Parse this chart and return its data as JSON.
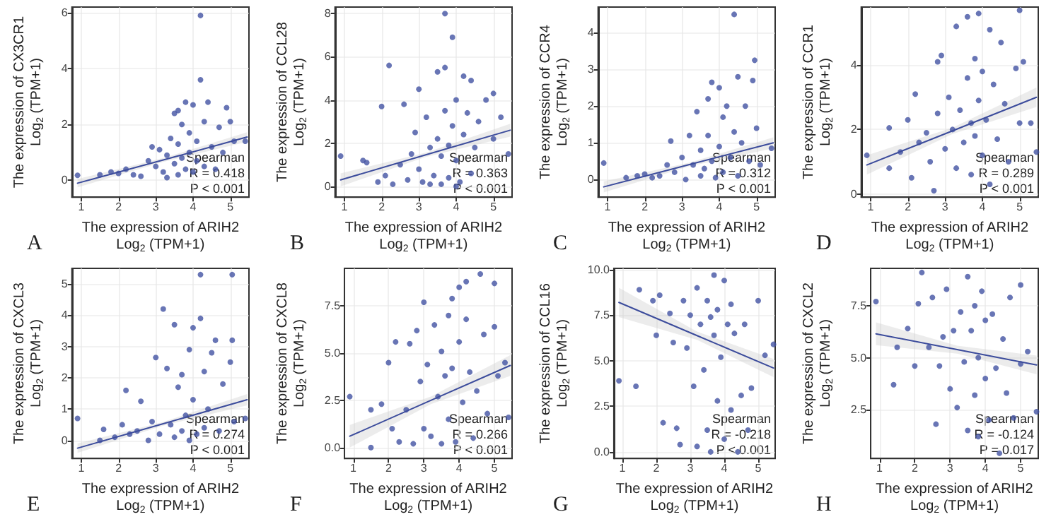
{
  "chart_data": [
    {
      "type": "scatter",
      "title": "A",
      "xlabel": "The expression of ARIH2\nLog$_{2}$ (TPM+1)",
      "ylabel": "The expression of CX3CR1\nLog$_{2}$ (TPM+1)",
      "xlim": [
        0.75,
        5.5
      ],
      "xticks": [
        1,
        2,
        3,
        4,
        5
      ],
      "ylim": [
        -0.6,
        6.2
      ],
      "yticks": [
        0,
        2,
        4,
        6
      ],
      "grid": true,
      "annotations": [
        "Spearman",
        "R = 0.418",
        "P < 0.001"
      ],
      "series": [
        {
          "marker": "circle",
          "color": "#4252a3",
          "x": [
            0.9,
            1.5,
            1.8,
            2.0,
            2.2,
            2.4,
            2.6,
            2.8,
            2.9,
            3.0,
            3.1,
            3.2,
            3.3,
            3.4,
            3.5,
            3.5,
            3.6,
            3.6,
            3.7,
            3.7,
            3.8,
            3.8,
            3.9,
            3.9,
            4.0,
            4.0,
            4.1,
            4.1,
            4.2,
            4.2,
            4.3,
            4.3,
            4.4,
            4.5,
            4.6,
            4.7,
            4.8,
            4.9,
            5.0,
            5.1,
            5.4,
            3.3,
            3.6
          ],
          "values": [
            0.18,
            0.2,
            0.3,
            0.25,
            0.4,
            0.2,
            0.15,
            0.7,
            1.2,
            0.5,
            1.1,
            0.3,
            0.9,
            1.5,
            2.4,
            0.6,
            1.3,
            0.2,
            2.0,
            0.8,
            2.8,
            0.4,
            1.7,
            1.0,
            2.7,
            0.3,
            1.4,
            0.7,
            5.9,
            3.6,
            2.1,
            0.5,
            2.8,
            1.2,
            0.4,
            1.9,
            1.0,
            2.6,
            2.1,
            1.4,
            1.4,
            0.1,
            2.5
          ]
        },
        {
          "type": "line",
          "color": "#3c4c9c",
          "x": [
            0.9,
            3.2,
            5.45
          ],
          "values": [
            -0.1,
            0.73,
            1.55
          ],
          "lower": [
            -0.25,
            0.66,
            1.38
          ],
          "upper": [
            0.05,
            0.8,
            1.72
          ]
        }
      ]
    },
    {
      "type": "scatter",
      "title": "B",
      "xlabel": "The expression of ARIH2\nLog$_{2}$ (TPM+1)",
      "ylabel": "The expression of CCL28\nLog$_{2}$ (TPM+1)",
      "xlim": [
        0.75,
        5.5
      ],
      "xticks": [
        1,
        2,
        3,
        4,
        5
      ],
      "ylim": [
        -0.5,
        8.3
      ],
      "yticks": [
        0,
        2,
        4,
        6,
        8
      ],
      "grid": true,
      "annotations": [
        "Spearman",
        "R = 0.363",
        "P < 0.001"
      ],
      "series": [
        {
          "marker": "circle",
          "color": "#4252a3",
          "x": [
            0.9,
            1.5,
            1.6,
            1.9,
            2.0,
            2.1,
            2.2,
            2.3,
            2.5,
            2.6,
            2.7,
            2.8,
            2.9,
            3.0,
            3.0,
            3.1,
            3.2,
            3.3,
            3.4,
            3.5,
            3.5,
            3.6,
            3.6,
            3.7,
            3.7,
            3.7,
            3.8,
            3.8,
            3.9,
            3.9,
            4.0,
            4.0,
            4.1,
            4.2,
            4.2,
            4.3,
            4.4,
            4.4,
            4.5,
            4.6,
            4.8,
            5.0,
            5.0,
            5.2,
            5.4,
            3.3,
            4.0
          ],
          "values": [
            1.4,
            1.2,
            1.1,
            0.2,
            3.7,
            0.5,
            5.6,
            0.1,
            1.0,
            3.8,
            0.3,
            1.5,
            2.5,
            4.5,
            0.8,
            0.2,
            3.2,
            1.8,
            0.5,
            5.3,
            2.2,
            1.4,
            0.1,
            8.0,
            5.5,
            3.5,
            1.9,
            0.4,
            6.9,
            2.8,
            4.0,
            1.2,
            0.2,
            5.1,
            2.4,
            3.4,
            4.9,
            0.6,
            1.8,
            3.0,
            4.0,
            4.3,
            2.2,
            3.2,
            1.5,
            0.1,
            0.0
          ]
        },
        {
          "type": "line",
          "color": "#3c4c9c",
          "x": [
            0.9,
            3.2,
            5.45
          ],
          "values": [
            0.3,
            1.47,
            2.6
          ],
          "lower": [
            0.0,
            1.37,
            2.3
          ],
          "upper": [
            0.6,
            1.57,
            2.9
          ]
        }
      ]
    },
    {
      "type": "scatter",
      "title": "C",
      "xlabel": "The expression of ARIH2\nLog$_{2}$ (TPM+1)",
      "ylabel": "The expression of CCR4\nLog$_{2}$ (TPM+1)",
      "xlim": [
        0.75,
        5.5
      ],
      "xticks": [
        1,
        2,
        3,
        4,
        5
      ],
      "ylim": [
        -0.48,
        4.7
      ],
      "yticks": [
        0,
        1,
        2,
        3,
        4
      ],
      "grid": true,
      "annotations": [
        "Spearman",
        "R = 0.312",
        "P < 0.001"
      ],
      "series": [
        {
          "marker": "circle",
          "color": "#4252a3",
          "x": [
            0.9,
            1.5,
            1.8,
            2.0,
            2.2,
            2.4,
            2.6,
            2.7,
            2.8,
            3.0,
            3.1,
            3.2,
            3.3,
            3.4,
            3.5,
            3.5,
            3.6,
            3.7,
            3.7,
            3.8,
            3.8,
            3.9,
            4.0,
            4.0,
            4.1,
            4.1,
            4.2,
            4.3,
            4.4,
            4.4,
            4.5,
            4.5,
            4.6,
            4.7,
            4.8,
            4.9,
            4.95,
            5.0,
            5.1,
            5.4
          ],
          "values": [
            0.45,
            0.05,
            0.1,
            0.15,
            0.05,
            0.1,
            0.4,
            1.05,
            0.2,
            0.6,
            0.0,
            1.2,
            0.4,
            1.85,
            0.8,
            0.1,
            0.3,
            2.2,
            1.2,
            2.65,
            0.5,
            0.05,
            2.5,
            0.9,
            1.7,
            0.2,
            2.0,
            0.6,
            4.5,
            1.3,
            2.8,
            0.1,
            1.0,
            2.0,
            0.5,
            2.7,
            3.25,
            1.4,
            0.4,
            0.85
          ]
        },
        {
          "type": "line",
          "color": "#3c4c9c",
          "x": [
            0.9,
            3.2,
            5.45
          ],
          "values": [
            -0.2,
            0.41,
            1.0
          ],
          "lower": [
            -0.35,
            0.36,
            0.85
          ],
          "upper": [
            -0.05,
            0.46,
            1.15
          ]
        }
      ]
    },
    {
      "type": "scatter",
      "title": "D",
      "xlabel": "The expression of ARIH2\nLog$_{2}$ (TPM+1)",
      "ylabel": "The expression of CCR1\nLog$_{2}$ (TPM+1)",
      "xlim": [
        0.75,
        5.5
      ],
      "xticks": [
        1,
        2,
        3,
        4,
        5
      ],
      "ylim": [
        -0.1,
        5.8
      ],
      "yticks": [
        0,
        2,
        4
      ],
      "grid": true,
      "annotations": [
        "Spearman",
        "R = 0.289",
        "P < 0.001"
      ],
      "series": [
        {
          "marker": "circle",
          "color": "#4252a3",
          "x": [
            0.9,
            1.5,
            1.5,
            1.8,
            2.0,
            2.1,
            2.2,
            2.3,
            2.5,
            2.6,
            2.7,
            2.8,
            2.8,
            2.9,
            3.0,
            3.1,
            3.2,
            3.3,
            3.3,
            3.4,
            3.5,
            3.6,
            3.6,
            3.7,
            3.7,
            3.8,
            3.8,
            3.9,
            3.9,
            4.0,
            4.0,
            4.1,
            4.2,
            4.2,
            4.3,
            4.4,
            4.5,
            4.6,
            4.7,
            4.9,
            5.0,
            5.0,
            5.1,
            5.3,
            5.45
          ],
          "values": [
            1.2,
            2.05,
            0.8,
            1.3,
            2.3,
            0.5,
            3.1,
            1.6,
            1.9,
            1.0,
            0.1,
            4.1,
            2.5,
            4.3,
            1.4,
            3.0,
            2.0,
            0.8,
            5.2,
            2.6,
            1.6,
            3.6,
            5.5,
            2.2,
            0.6,
            4.2,
            1.8,
            5.6,
            2.9,
            1.2,
            3.8,
            2.3,
            5.1,
            0.3,
            3.4,
            1.7,
            4.7,
            2.8,
            1.0,
            3.9,
            5.7,
            2.2,
            4.1,
            2.2,
            1.3
          ]
        },
        {
          "type": "line",
          "color": "#3c4c9c",
          "x": [
            0.9,
            3.2,
            5.45
          ],
          "values": [
            0.9,
            1.96,
            3.0
          ],
          "lower": [
            0.6,
            1.86,
            2.7
          ],
          "upper": [
            1.2,
            2.06,
            3.3
          ]
        }
      ]
    },
    {
      "type": "scatter",
      "title": "E",
      "xlabel": "The expression of ARIH2\nLog$_{2}$ (TPM+1)",
      "ylabel": "The expression of CXCL3\nLog$_{2}$ (TPM+1)",
      "xlim": [
        0.75,
        5.5
      ],
      "xticks": [
        1,
        2,
        3,
        4,
        5
      ],
      "ylim": [
        -0.58,
        5.5
      ],
      "yticks": [
        0,
        1,
        2,
        3,
        4,
        5
      ],
      "grid": true,
      "annotations": [
        "Spearman",
        "R = 0.274",
        "P < 0.001"
      ],
      "series": [
        {
          "marker": "circle",
          "color": "#4252a3",
          "x": [
            0.9,
            1.5,
            1.6,
            1.9,
            2.1,
            2.2,
            2.3,
            2.5,
            2.6,
            2.8,
            2.9,
            3.0,
            3.1,
            3.2,
            3.3,
            3.4,
            3.5,
            3.5,
            3.6,
            3.7,
            3.7,
            3.8,
            3.9,
            3.9,
            4.0,
            4.0,
            4.1,
            4.2,
            4.2,
            4.3,
            4.3,
            4.4,
            4.5,
            4.6,
            4.7,
            4.8,
            5.0,
            5.05,
            5.05,
            5.1,
            5.4
          ],
          "values": [
            0.7,
            0.0,
            0.35,
            0.1,
            0.5,
            1.6,
            0.2,
            0.3,
            1.25,
            0.0,
            0.6,
            2.65,
            0.2,
            4.2,
            2.3,
            0.5,
            3.7,
            0.1,
            1.7,
            0.3,
            2.1,
            0.8,
            2.9,
            0.0,
            3.6,
            1.3,
            0.2,
            5.3,
            3.9,
            2.2,
            0.4,
            1.0,
            2.8,
            3.2,
            0.3,
            1.8,
            2.5,
            5.3,
            3.2,
            0.6,
            0.7
          ]
        },
        {
          "type": "line",
          "color": "#3c4c9c",
          "x": [
            0.9,
            3.2,
            5.45
          ],
          "values": [
            -0.25,
            0.53,
            1.3
          ],
          "lower": [
            -0.4,
            0.47,
            1.12
          ],
          "upper": [
            -0.1,
            0.59,
            1.48
          ]
        }
      ]
    },
    {
      "type": "scatter",
      "title": "F",
      "xlabel": "The expression of ARIH2\nLog$_{2}$ (TPM+1)",
      "ylabel": "The expression of CXCL8\nLog$_{2}$ (TPM+1)",
      "xlim": [
        0.75,
        5.5
      ],
      "xticks": [
        1,
        2,
        3,
        4,
        5
      ],
      "ylim": [
        -0.58,
        9.5
      ],
      "yticks": [
        {
          "value": 0,
          "label": "0.0"
        },
        2.5,
        {
          "value": 5,
          "label": "5.0"
        },
        7.5
      ],
      "grid": true,
      "annotations": [
        "Spearman",
        "R = 0.266",
        "P < 0.001"
      ],
      "series": [
        {
          "marker": "circle",
          "color": "#4252a3",
          "x": [
            0.9,
            1.5,
            1.5,
            1.8,
            2.0,
            2.1,
            2.2,
            2.3,
            2.5,
            2.6,
            2.7,
            2.8,
            2.9,
            3.0,
            3.0,
            3.1,
            3.2,
            3.3,
            3.4,
            3.5,
            3.5,
            3.6,
            3.7,
            3.7,
            3.8,
            3.8,
            3.9,
            4.0,
            4.0,
            4.1,
            4.2,
            4.2,
            4.3,
            4.4,
            4.5,
            4.6,
            4.7,
            4.8,
            5.0,
            5.0,
            5.1,
            5.3,
            5.4
          ],
          "values": [
            2.7,
            0.0,
            2.0,
            2.3,
            4.5,
            1.0,
            5.6,
            0.3,
            2.0,
            5.5,
            0.2,
            6.2,
            3.5,
            7.7,
            1.0,
            4.4,
            0.6,
            6.5,
            2.7,
            5.1,
            0.2,
            3.8,
            7.0,
            1.5,
            7.9,
            4.2,
            0.3,
            8.5,
            5.6,
            2.4,
            8.8,
            6.8,
            4.0,
            0.5,
            3.0,
            9.2,
            6.0,
            1.8,
            8.7,
            6.4,
            3.8,
            4.5,
            1.6
          ]
        },
        {
          "type": "line",
          "color": "#3c4c9c",
          "x": [
            0.9,
            3.2,
            5.45
          ],
          "values": [
            0.6,
            2.5,
            4.35
          ],
          "lower": [
            0.0,
            2.3,
            3.8
          ],
          "upper": [
            1.2,
            2.7,
            4.9
          ]
        }
      ]
    },
    {
      "type": "scatter",
      "title": "G",
      "xlabel": "The expression of ARIH2\nLog$_{2}$ (TPM+1)",
      "ylabel": "The expression of CCL16\nLog$_{2}$ (TPM+1)",
      "xlim": [
        0.75,
        5.5
      ],
      "xticks": [
        1,
        2,
        3,
        4,
        5
      ],
      "ylim": [
        -0.36,
        10.07
      ],
      "yticks": [
        {
          "value": 0,
          "label": "0.0"
        },
        2.5,
        {
          "value": 5,
          "label": "5.0"
        },
        7.5,
        {
          "value": 10,
          "label": "10.0"
        }
      ],
      "grid": true,
      "annotations": [
        "Spearman",
        "R = -0.218",
        "P < 0.001"
      ],
      "series": [
        {
          "marker": "circle",
          "color": "#4252a3",
          "x": [
            0.9,
            1.4,
            1.5,
            1.9,
            2.0,
            2.1,
            2.2,
            2.4,
            2.5,
            2.6,
            2.7,
            2.8,
            2.9,
            3.0,
            3.1,
            3.2,
            3.2,
            3.3,
            3.4,
            3.5,
            3.5,
            3.6,
            3.6,
            3.7,
            3.7,
            3.8,
            3.8,
            3.9,
            4.0,
            4.0,
            4.1,
            4.2,
            4.2,
            4.3,
            4.4,
            4.5,
            4.6,
            4.7,
            4.8,
            5.0,
            5.2,
            5.45
          ],
          "values": [
            3.9,
            3.6,
            8.9,
            8.3,
            6.4,
            8.6,
            1.6,
            7.6,
            6.0,
            1.3,
            0.4,
            8.3,
            5.7,
            7.5,
            3.6,
            9.0,
            0.3,
            7.0,
            4.5,
            8.3,
            1.2,
            7.4,
            0.0,
            9.7,
            6.4,
            7.8,
            2.8,
            5.2,
            9.4,
            0.7,
            7.0,
            2.3,
            8.1,
            6.5,
            0.0,
            3.1,
            7.0,
            1.2,
            3.5,
            8.3,
            5.3,
            5.9
          ]
        },
        {
          "type": "line",
          "color": "#3c4c9c",
          "x": [
            0.9,
            3.2,
            5.45
          ],
          "values": [
            8.2,
            6.38,
            4.6
          ],
          "lower": [
            7.4,
            6.15,
            4.1
          ],
          "upper": [
            9.0,
            6.6,
            5.1
          ]
        }
      ]
    },
    {
      "type": "scatter",
      "title": "H",
      "xlabel": "The expression of ARIH2\nLog$_{2}$ (TPM+1)",
      "ylabel": "The expression of CXCL2\nLog$_{2}$ (TPM+1)",
      "xlim": [
        0.75,
        5.5
      ],
      "xticks": [
        1,
        2,
        3,
        4,
        5
      ],
      "ylim": [
        0.15,
        9.3
      ],
      "yticks": [
        2.5,
        {
          "value": 5,
          "label": "5.0"
        },
        7.5
      ],
      "grid": true,
      "annotations": [
        "Spearman",
        "R = -0.124",
        "P = 0.017"
      ],
      "series": [
        {
          "marker": "circle",
          "color": "#4252a3",
          "x": [
            0.9,
            1.4,
            1.5,
            1.8,
            2.0,
            2.1,
            2.2,
            2.4,
            2.5,
            2.6,
            2.7,
            2.8,
            2.9,
            3.0,
            3.1,
            3.2,
            3.3,
            3.4,
            3.5,
            3.5,
            3.6,
            3.7,
            3.7,
            3.8,
            3.8,
            3.9,
            4.0,
            4.0,
            4.1,
            4.2,
            4.3,
            4.4,
            4.5,
            4.6,
            4.7,
            4.8,
            5.0,
            5.0,
            5.2,
            5.45
          ],
          "values": [
            7.7,
            3.7,
            5.5,
            6.4,
            4.6,
            7.6,
            9.1,
            5.5,
            7.9,
            1.8,
            4.6,
            6.0,
            8.3,
            3.5,
            6.3,
            2.6,
            7.2,
            4.8,
            1.5,
            8.9,
            6.3,
            3.2,
            7.5,
            5.0,
            1.2,
            8.2,
            4.0,
            6.8,
            2.0,
            7.1,
            4.5,
            0.4,
            5.9,
            3.3,
            7.9,
            2.1,
            8.5,
            4.7,
            5.3,
            2.4
          ]
        },
        {
          "type": "line",
          "color": "#3c4c9c",
          "x": [
            0.9,
            3.2,
            5.45
          ],
          "values": [
            6.15,
            5.39,
            4.65
          ],
          "lower": [
            5.6,
            5.2,
            4.2
          ],
          "upper": [
            6.7,
            5.58,
            5.1
          ]
        }
      ]
    }
  ]
}
